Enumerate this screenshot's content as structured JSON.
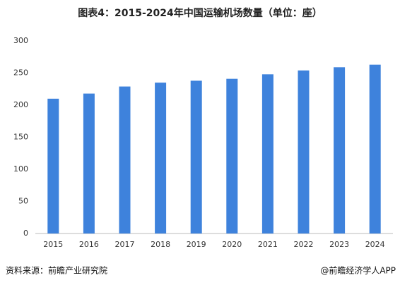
{
  "chart_data": {
    "type": "bar",
    "title": "图表4：2015-2024年中国运输机场数量（单位：座）",
    "categories": [
      "2015",
      "2016",
      "2017",
      "2018",
      "2019",
      "2020",
      "2021",
      "2022",
      "2023",
      "2024"
    ],
    "values": [
      210,
      218,
      229,
      235,
      238,
      241,
      248,
      254,
      259,
      263
    ],
    "color": "#3e82dc",
    "ylim": [
      0,
      300
    ],
    "yticks": [
      0,
      50,
      100,
      150,
      200,
      250,
      300
    ],
    "grid": false,
    "source": "资料来源：前瞻产业研究院",
    "credit": "@前瞻经济学人APP"
  }
}
